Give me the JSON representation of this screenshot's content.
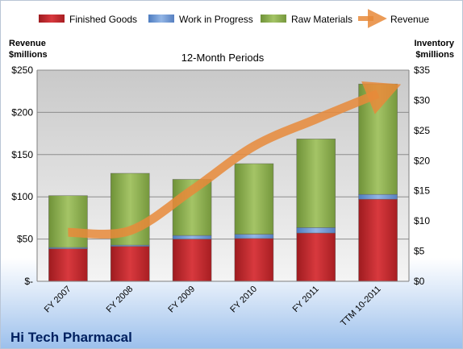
{
  "chart_data": {
    "type": "bar",
    "title": "12-Month Periods",
    "company": "Hi Tech Pharmacal",
    "left_axis_label": [
      "Revenue",
      "$millions"
    ],
    "right_axis_label": [
      "Inventory",
      "$millions"
    ],
    "categories": [
      "FY 2007",
      "FY 2008",
      "FY 2009",
      "FY 2010",
      "FY 2011",
      "TTM 10-2011"
    ],
    "left_ylim": [
      0,
      250
    ],
    "left_ticks": [
      0,
      50,
      100,
      150,
      200,
      250
    ],
    "left_tick_labels": [
      "$-",
      "$50",
      "$100",
      "$150",
      "$200",
      "$250"
    ],
    "right_ylim": [
      0,
      35
    ],
    "right_ticks": [
      0,
      5,
      10,
      15,
      20,
      25,
      30,
      35
    ],
    "right_tick_labels": [
      "$0",
      "$5",
      "$10",
      "$15",
      "$20",
      "$25",
      "$30",
      "$35"
    ],
    "stacked_series_axis": "right",
    "series": [
      {
        "name": "Finished Goods",
        "kind": "bar",
        "axis": "right",
        "color": "#c0262b",
        "values": [
          5.4,
          5.8,
          7.0,
          7.1,
          8.0,
          13.6
        ]
      },
      {
        "name": "Work in Progress",
        "kind": "bar",
        "axis": "right",
        "color": "#6e9bd8",
        "values": [
          0.2,
          0.2,
          0.6,
          0.7,
          0.9,
          0.8
        ]
      },
      {
        "name": "Raw Materials",
        "kind": "bar",
        "axis": "right",
        "color": "#8fb052",
        "values": [
          8.6,
          11.9,
          9.3,
          11.7,
          14.7,
          18.3
        ]
      },
      {
        "name": "Revenue",
        "kind": "line",
        "axis": "left",
        "color": "#e8893a",
        "values": [
          58,
          60,
          108,
          160,
          192,
          222
        ]
      }
    ],
    "legend_position": "top",
    "grid": true
  }
}
